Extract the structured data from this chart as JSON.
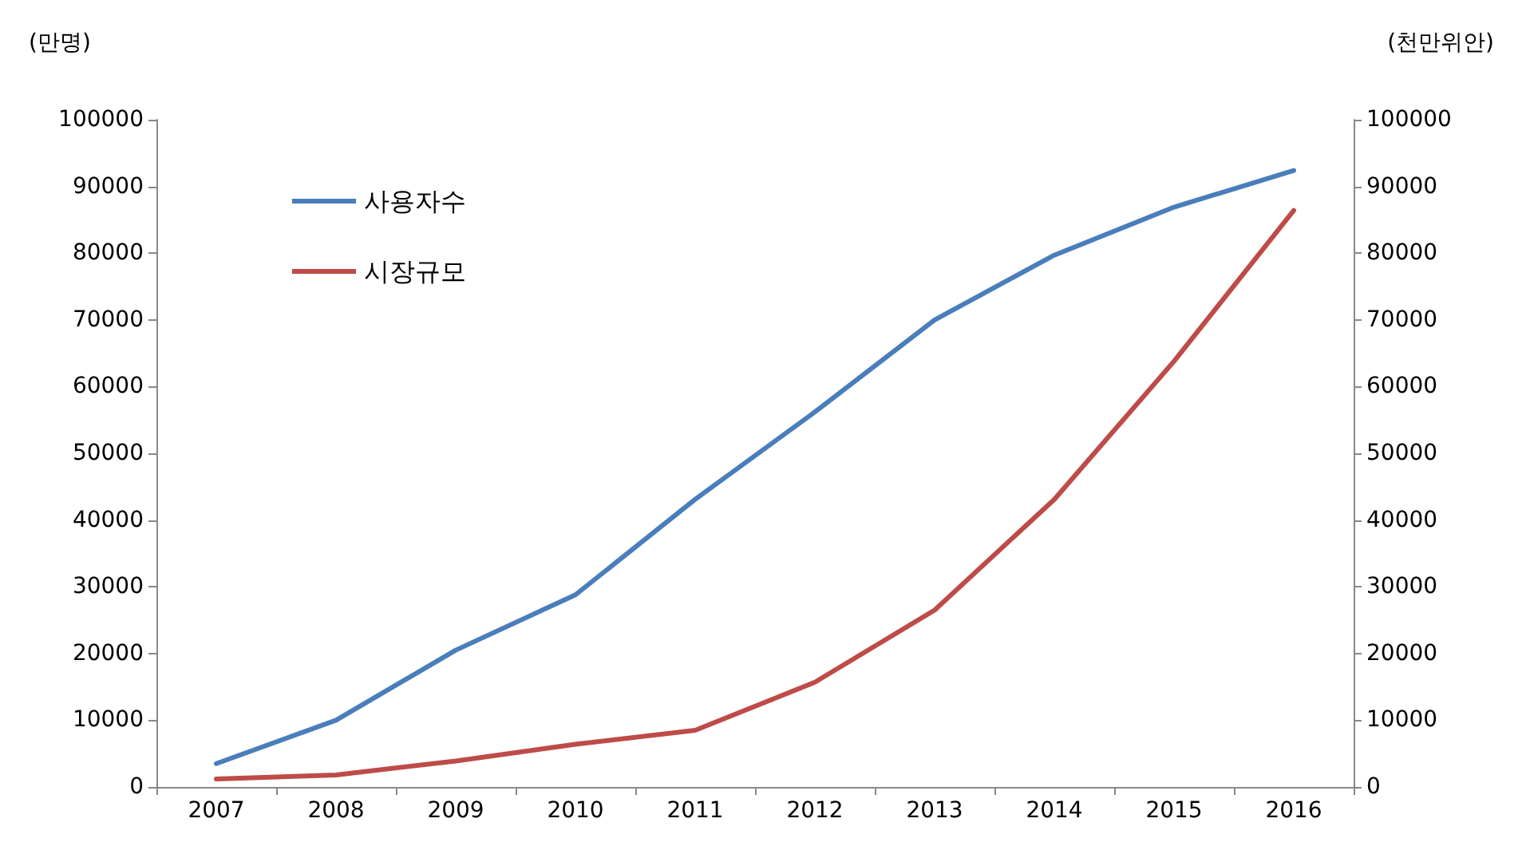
{
  "chart_data": {
    "type": "line",
    "ylabel": "(만명)",
    "y2label": "(천만위안)",
    "categories": [
      "2007",
      "2008",
      "2009",
      "2010",
      "2011",
      "2012",
      "2013",
      "2014",
      "2015",
      "2016"
    ],
    "series": [
      {
        "name": "사용자수",
        "color": "#4a7ebb",
        "values": [
          3500,
          10000,
          20500,
          28800,
          43100,
          56200,
          70000,
          79700,
          86900,
          92400
        ]
      },
      {
        "name": "시장규모",
        "color": "#be4b48",
        "axis": "y2",
        "values": [
          1200,
          1800,
          3900,
          6400,
          8500,
          15700,
          26500,
          43100,
          63800,
          86400
        ]
      }
    ],
    "ylim": [
      0,
      100000
    ],
    "yticks": [
      0,
      10000,
      20000,
      30000,
      40000,
      50000,
      60000,
      70000,
      80000,
      90000,
      100000
    ],
    "y2lim": [
      0,
      100000
    ],
    "y2ticks": [
      0,
      10000,
      20000,
      30000,
      40000,
      50000,
      60000,
      70000,
      80000,
      90000,
      100000
    ],
    "grid": false,
    "legend": "top left",
    "marker": "none",
    "line_style": "solid"
  }
}
